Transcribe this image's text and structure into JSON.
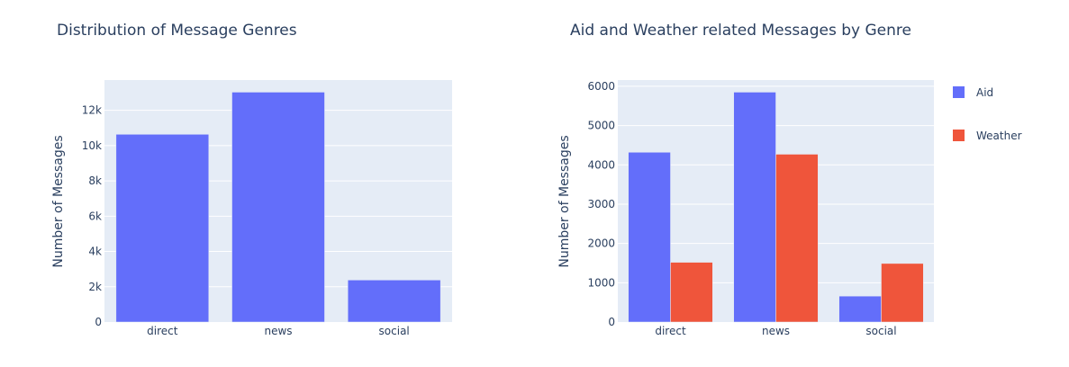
{
  "chart_data": [
    {
      "type": "bar",
      "title": "Distribution of Message Genres",
      "xlabel": "",
      "ylabel": "Number of Messages",
      "categories": [
        "direct",
        "news",
        "social"
      ],
      "series": [
        {
          "values": [
            10640,
            13030,
            2380
          ],
          "color": "#636efa"
        }
      ],
      "ylim": [
        0,
        13716
      ],
      "yticks": [
        0,
        2000,
        4000,
        6000,
        8000,
        10000,
        12000
      ],
      "ytick_labels": [
        "0",
        "2k",
        "4k",
        "6k",
        "8k",
        "10k",
        "12k"
      ],
      "grid": true,
      "legend": "none"
    },
    {
      "type": "bar",
      "title": "Aid and Weather related Messages by Genre",
      "xlabel": "",
      "ylabel": "Number of Messages",
      "categories": [
        "direct",
        "news",
        "social"
      ],
      "series": [
        {
          "name": "Aid",
          "values": [
            4320,
            5850,
            660
          ],
          "color": "#636efa"
        },
        {
          "name": "Weather",
          "values": [
            1520,
            4270,
            1490
          ],
          "color": "#ef553b"
        }
      ],
      "ylim": [
        0,
        6158
      ],
      "yticks": [
        0,
        1000,
        2000,
        3000,
        4000,
        5000,
        6000
      ],
      "ytick_labels": [
        "0",
        "1000",
        "2000",
        "3000",
        "4000",
        "5000",
        "6000"
      ],
      "grid": true,
      "legend": "top-right"
    }
  ],
  "colors": {
    "plot_bg": "#e5ecf6",
    "grid": "#ffffff",
    "text": "#2a3f5f"
  }
}
